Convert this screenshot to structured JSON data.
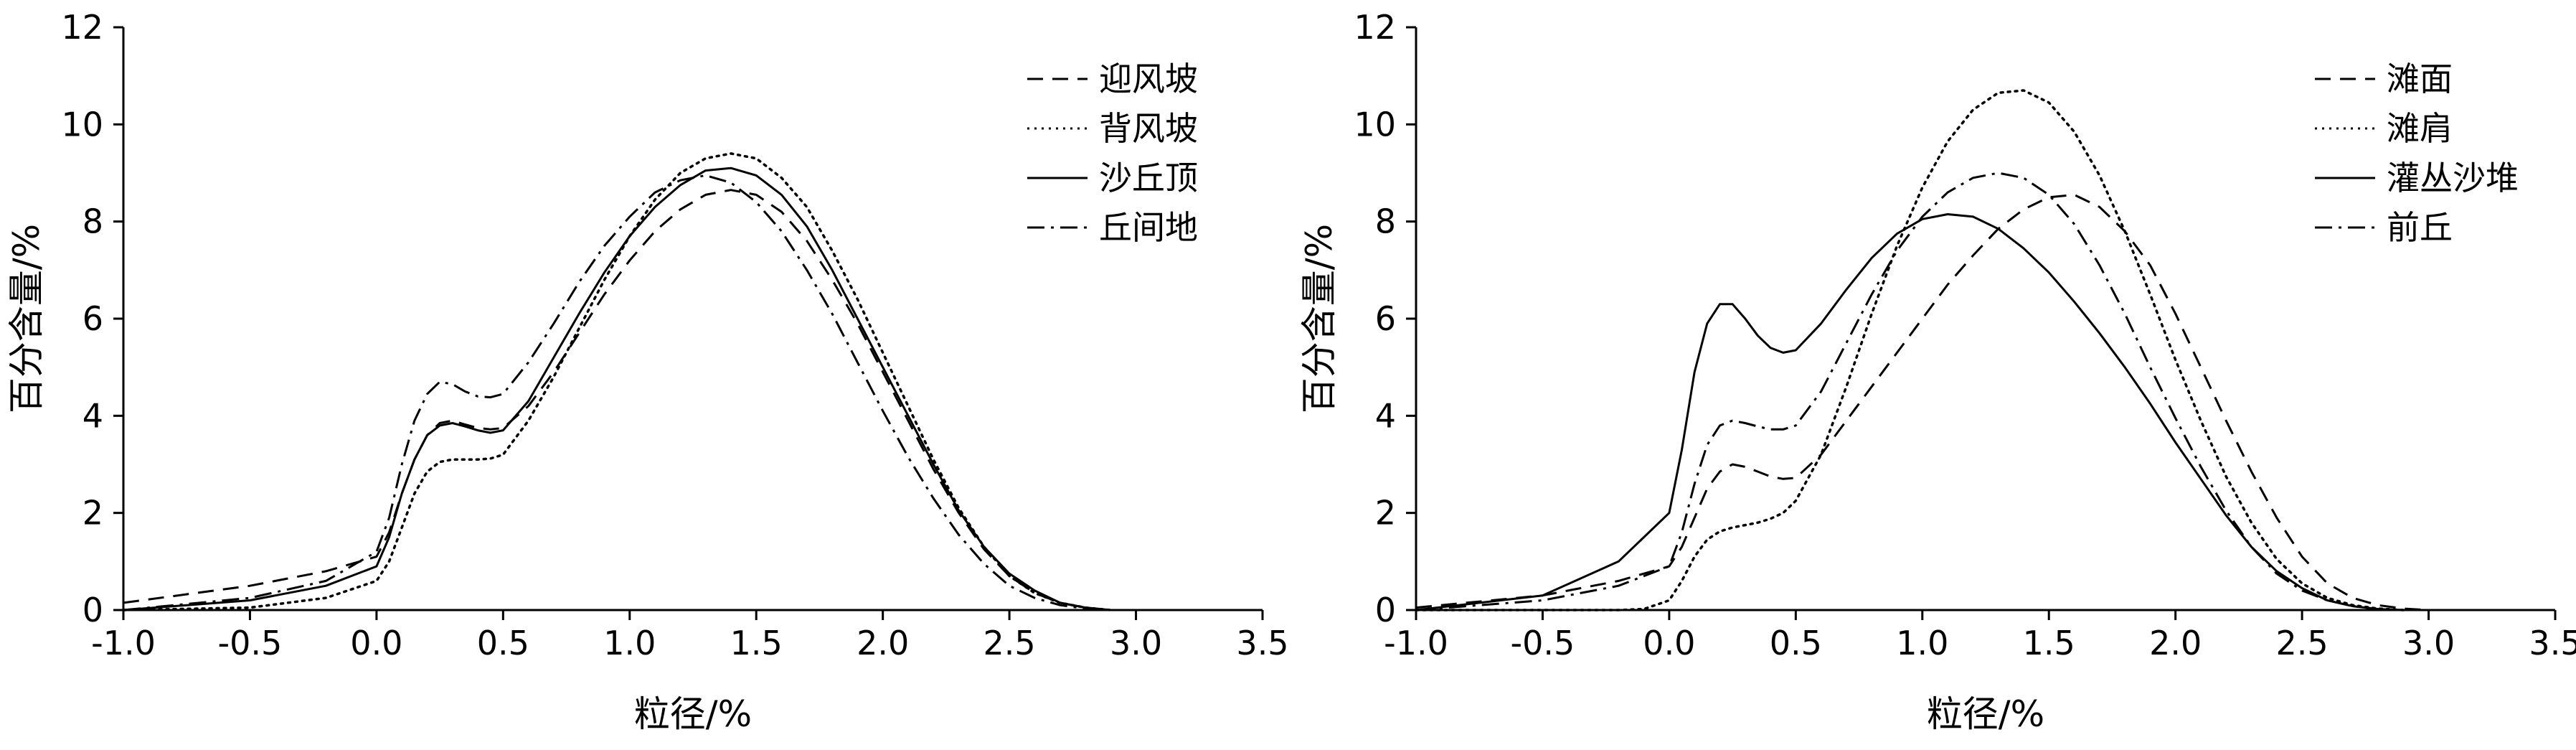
{
  "chart_data": [
    {
      "type": "line",
      "xlabel": "粒径/%",
      "ylabel": "百分含量/%",
      "xlim": [
        -1.0,
        3.5
      ],
      "ylim": [
        0,
        12
      ],
      "xticks": [
        "-1.0",
        "-0.5",
        "0.0",
        "0.5",
        "1.0",
        "1.5",
        "2.0",
        "2.5",
        "3.0",
        "3.5"
      ],
      "yticks": [
        "0",
        "2",
        "4",
        "6",
        "8",
        "10",
        "12"
      ],
      "legend_position": "top-right",
      "series": [
        {
          "name": "迎风坡",
          "style": "dashed",
          "x": [
            -1.0,
            -0.5,
            -0.2,
            0.0,
            0.05,
            0.1,
            0.15,
            0.2,
            0.25,
            0.3,
            0.35,
            0.4,
            0.45,
            0.5,
            0.6,
            0.7,
            0.8,
            0.9,
            1.0,
            1.1,
            1.2,
            1.3,
            1.4,
            1.5,
            1.6,
            1.7,
            1.8,
            1.9,
            2.0,
            2.1,
            2.2,
            2.3,
            2.4,
            2.5,
            2.6,
            2.7,
            2.8,
            2.9
          ],
          "y": [
            0.15,
            0.5,
            0.8,
            1.1,
            1.6,
            2.4,
            3.1,
            3.6,
            3.85,
            3.9,
            3.82,
            3.75,
            3.72,
            3.75,
            4.2,
            4.9,
            5.7,
            6.5,
            7.2,
            7.8,
            8.25,
            8.55,
            8.65,
            8.55,
            8.2,
            7.6,
            6.8,
            5.9,
            4.9,
            3.9,
            2.9,
            2.0,
            1.25,
            0.7,
            0.35,
            0.15,
            0.05,
            0.0
          ]
        },
        {
          "name": "背风坡",
          "style": "dotted",
          "x": [
            -1.0,
            -0.5,
            -0.2,
            0.0,
            0.05,
            0.1,
            0.15,
            0.2,
            0.25,
            0.3,
            0.35,
            0.4,
            0.45,
            0.5,
            0.6,
            0.7,
            0.8,
            0.9,
            1.0,
            1.1,
            1.2,
            1.3,
            1.4,
            1.5,
            1.6,
            1.7,
            1.8,
            1.9,
            2.0,
            2.1,
            2.2,
            2.3,
            2.4,
            2.5,
            2.6,
            2.7,
            2.8,
            2.9
          ],
          "y": [
            0.0,
            0.05,
            0.25,
            0.6,
            1.0,
            1.7,
            2.4,
            2.85,
            3.05,
            3.1,
            3.1,
            3.1,
            3.12,
            3.2,
            3.9,
            4.8,
            5.8,
            6.8,
            7.7,
            8.45,
            9.0,
            9.3,
            9.4,
            9.3,
            8.9,
            8.3,
            7.4,
            6.4,
            5.3,
            4.2,
            3.1,
            2.1,
            1.3,
            0.7,
            0.35,
            0.15,
            0.05,
            0.0
          ]
        },
        {
          "name": "沙丘顶",
          "style": "solid",
          "x": [
            -1.0,
            -0.5,
            -0.2,
            0.0,
            0.05,
            0.1,
            0.15,
            0.2,
            0.25,
            0.3,
            0.35,
            0.4,
            0.45,
            0.5,
            0.6,
            0.7,
            0.8,
            0.9,
            1.0,
            1.1,
            1.2,
            1.3,
            1.4,
            1.5,
            1.6,
            1.7,
            1.8,
            1.9,
            2.0,
            2.1,
            2.2,
            2.3,
            2.4,
            2.5,
            2.6,
            2.7,
            2.8,
            2.9
          ],
          "y": [
            0.0,
            0.2,
            0.5,
            0.9,
            1.5,
            2.4,
            3.1,
            3.6,
            3.8,
            3.85,
            3.78,
            3.7,
            3.65,
            3.7,
            4.3,
            5.2,
            6.1,
            6.95,
            7.7,
            8.3,
            8.75,
            9.05,
            9.1,
            8.95,
            8.55,
            7.9,
            7.0,
            6.0,
            5.0,
            4.0,
            3.0,
            2.05,
            1.3,
            0.75,
            0.4,
            0.15,
            0.05,
            0.0
          ]
        },
        {
          "name": "丘间地",
          "style": "dashdot",
          "x": [
            -1.0,
            -0.5,
            -0.2,
            0.0,
            0.05,
            0.1,
            0.15,
            0.2,
            0.25,
            0.3,
            0.35,
            0.4,
            0.45,
            0.5,
            0.6,
            0.7,
            0.8,
            0.9,
            1.0,
            1.1,
            1.2,
            1.3,
            1.4,
            1.5,
            1.6,
            1.7,
            1.8,
            1.9,
            2.0,
            2.1,
            2.2,
            2.3,
            2.4,
            2.5,
            2.6,
            2.7,
            2.8,
            2.9
          ],
          "y": [
            0.0,
            0.25,
            0.6,
            1.2,
            1.9,
            3.0,
            3.9,
            4.45,
            4.7,
            4.65,
            4.5,
            4.4,
            4.38,
            4.45,
            5.1,
            5.9,
            6.75,
            7.5,
            8.1,
            8.6,
            8.85,
            8.95,
            8.8,
            8.4,
            7.8,
            7.0,
            6.1,
            5.1,
            4.1,
            3.15,
            2.3,
            1.55,
            0.95,
            0.5,
            0.25,
            0.1,
            0.03,
            0.0
          ]
        }
      ]
    },
    {
      "type": "line",
      "xlabel": "粒径/%",
      "ylabel": "百分含量/%",
      "xlim": [
        -1.0,
        3.5
      ],
      "ylim": [
        0,
        12
      ],
      "xticks": [
        "-1.0",
        "-0.5",
        "0.0",
        "0.5",
        "1.0",
        "1.5",
        "2.0",
        "2.5",
        "3.0",
        "3.5"
      ],
      "yticks": [
        "0",
        "2",
        "4",
        "6",
        "8",
        "10",
        "12"
      ],
      "legend_position": "top-right",
      "series": [
        {
          "name": "滩面",
          "style": "dashed",
          "x": [
            -1.0,
            -0.5,
            -0.2,
            0.0,
            0.05,
            0.1,
            0.15,
            0.2,
            0.25,
            0.3,
            0.35,
            0.4,
            0.45,
            0.5,
            0.6,
            0.7,
            0.8,
            0.9,
            1.0,
            1.1,
            1.2,
            1.3,
            1.4,
            1.5,
            1.6,
            1.7,
            1.8,
            1.9,
            2.0,
            2.1,
            2.2,
            2.3,
            2.4,
            2.5,
            2.6,
            2.7,
            2.8,
            2.9,
            3.0
          ],
          "y": [
            0.05,
            0.3,
            0.6,
            0.9,
            1.3,
            1.9,
            2.5,
            2.85,
            3.0,
            2.95,
            2.85,
            2.75,
            2.7,
            2.72,
            3.2,
            3.9,
            4.6,
            5.3,
            6.0,
            6.7,
            7.3,
            7.85,
            8.25,
            8.5,
            8.55,
            8.3,
            7.8,
            7.1,
            6.1,
            5.0,
            3.9,
            2.85,
            1.9,
            1.1,
            0.55,
            0.25,
            0.1,
            0.03,
            0.0
          ]
        },
        {
          "name": "滩肩",
          "style": "dotted",
          "x": [
            -1.0,
            -0.5,
            -0.2,
            -0.1,
            0.0,
            0.05,
            0.1,
            0.15,
            0.2,
            0.25,
            0.3,
            0.35,
            0.4,
            0.45,
            0.5,
            0.6,
            0.7,
            0.8,
            0.9,
            1.0,
            1.1,
            1.2,
            1.3,
            1.4,
            1.5,
            1.6,
            1.7,
            1.8,
            1.9,
            2.0,
            2.1,
            2.2,
            2.3,
            2.4,
            2.5,
            2.6,
            2.7,
            2.8,
            2.9
          ],
          "y": [
            0.0,
            0.0,
            0.0,
            0.02,
            0.2,
            0.6,
            1.1,
            1.45,
            1.62,
            1.7,
            1.75,
            1.8,
            1.88,
            2.0,
            2.25,
            3.2,
            4.6,
            6.1,
            7.5,
            8.7,
            9.65,
            10.3,
            10.65,
            10.7,
            10.45,
            9.85,
            8.95,
            7.8,
            6.5,
            5.15,
            3.9,
            2.75,
            1.8,
            1.05,
            0.55,
            0.25,
            0.1,
            0.03,
            0.0
          ]
        },
        {
          "name": "灌丛沙堆",
          "style": "solid",
          "x": [
            -1.0,
            -0.5,
            -0.2,
            0.0,
            0.05,
            0.1,
            0.15,
            0.2,
            0.25,
            0.3,
            0.35,
            0.4,
            0.45,
            0.5,
            0.6,
            0.7,
            0.8,
            0.9,
            1.0,
            1.1,
            1.2,
            1.3,
            1.4,
            1.5,
            1.6,
            1.7,
            1.8,
            1.9,
            2.0,
            2.1,
            2.2,
            2.3,
            2.4,
            2.5,
            2.6,
            2.7,
            2.8,
            2.9
          ],
          "y": [
            0.0,
            0.3,
            1.0,
            2.0,
            3.3,
            4.9,
            5.9,
            6.3,
            6.3,
            6.0,
            5.65,
            5.4,
            5.3,
            5.35,
            5.9,
            6.6,
            7.25,
            7.75,
            8.05,
            8.15,
            8.1,
            7.85,
            7.45,
            6.95,
            6.35,
            5.7,
            5.0,
            4.25,
            3.45,
            2.7,
            1.95,
            1.3,
            0.8,
            0.45,
            0.2,
            0.08,
            0.02,
            0.0
          ]
        },
        {
          "name": "前丘",
          "style": "dashdot",
          "x": [
            -1.0,
            -0.5,
            -0.2,
            0.0,
            0.05,
            0.1,
            0.15,
            0.2,
            0.25,
            0.3,
            0.35,
            0.4,
            0.45,
            0.5,
            0.6,
            0.7,
            0.8,
            0.9,
            1.0,
            1.1,
            1.2,
            1.3,
            1.4,
            1.5,
            1.6,
            1.7,
            1.8,
            1.9,
            2.0,
            2.1,
            2.2,
            2.3,
            2.4,
            2.5,
            2.6,
            2.7,
            2.8,
            2.9
          ],
          "y": [
            0.0,
            0.2,
            0.5,
            0.9,
            1.6,
            2.6,
            3.4,
            3.8,
            3.9,
            3.85,
            3.78,
            3.72,
            3.72,
            3.8,
            4.5,
            5.5,
            6.5,
            7.4,
            8.1,
            8.6,
            8.9,
            9.0,
            8.9,
            8.55,
            7.95,
            7.1,
            6.1,
            5.0,
            3.95,
            2.95,
            2.05,
            1.3,
            0.75,
            0.4,
            0.2,
            0.08,
            0.02,
            0.0
          ]
        }
      ]
    }
  ]
}
